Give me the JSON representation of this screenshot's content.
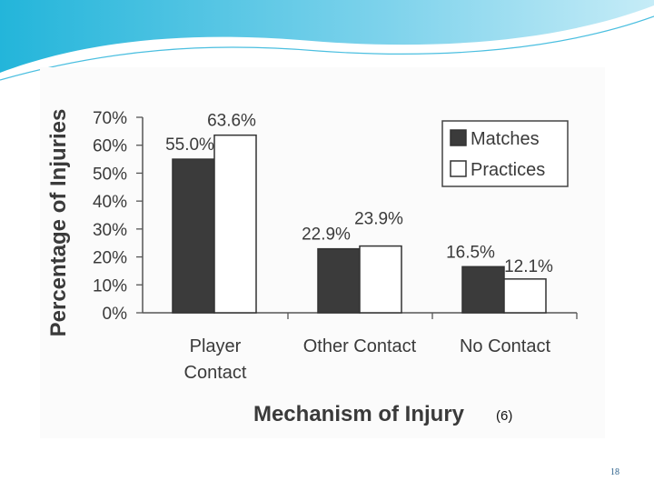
{
  "slide": {
    "citation": "(6)",
    "page_number": "18",
    "header_colors": [
      "#1fb1d6",
      "#8fd9ee",
      "#ffffff"
    ]
  },
  "chart_data": {
    "type": "bar",
    "title": "",
    "xlabel": "Mechanism of Injury",
    "ylabel": "Percentage of Injuries",
    "ylim": [
      0,
      70
    ],
    "y_ticks": [
      0,
      10,
      20,
      30,
      40,
      50,
      60,
      70
    ],
    "y_tick_labels": [
      "0%",
      "10%",
      "20%",
      "30%",
      "40%",
      "50%",
      "60%",
      "70%"
    ],
    "categories": [
      {
        "lines": [
          "Player",
          "Contact"
        ]
      },
      {
        "lines": [
          "Other Contact"
        ]
      },
      {
        "lines": [
          "No Contact"
        ]
      }
    ],
    "series": [
      {
        "name": "Matches",
        "color": "#3b3b3b",
        "values": [
          55.0,
          22.9,
          16.5
        ],
        "labels": [
          "55.0%",
          "22.9%",
          "16.5%"
        ]
      },
      {
        "name": "Practices",
        "color": "#ffffff",
        "values": [
          63.6,
          23.9,
          12.1
        ],
        "labels": [
          "63.6%",
          "23.9%",
          "12.1%"
        ]
      }
    ],
    "legend_position": "top-right",
    "grid": false
  }
}
